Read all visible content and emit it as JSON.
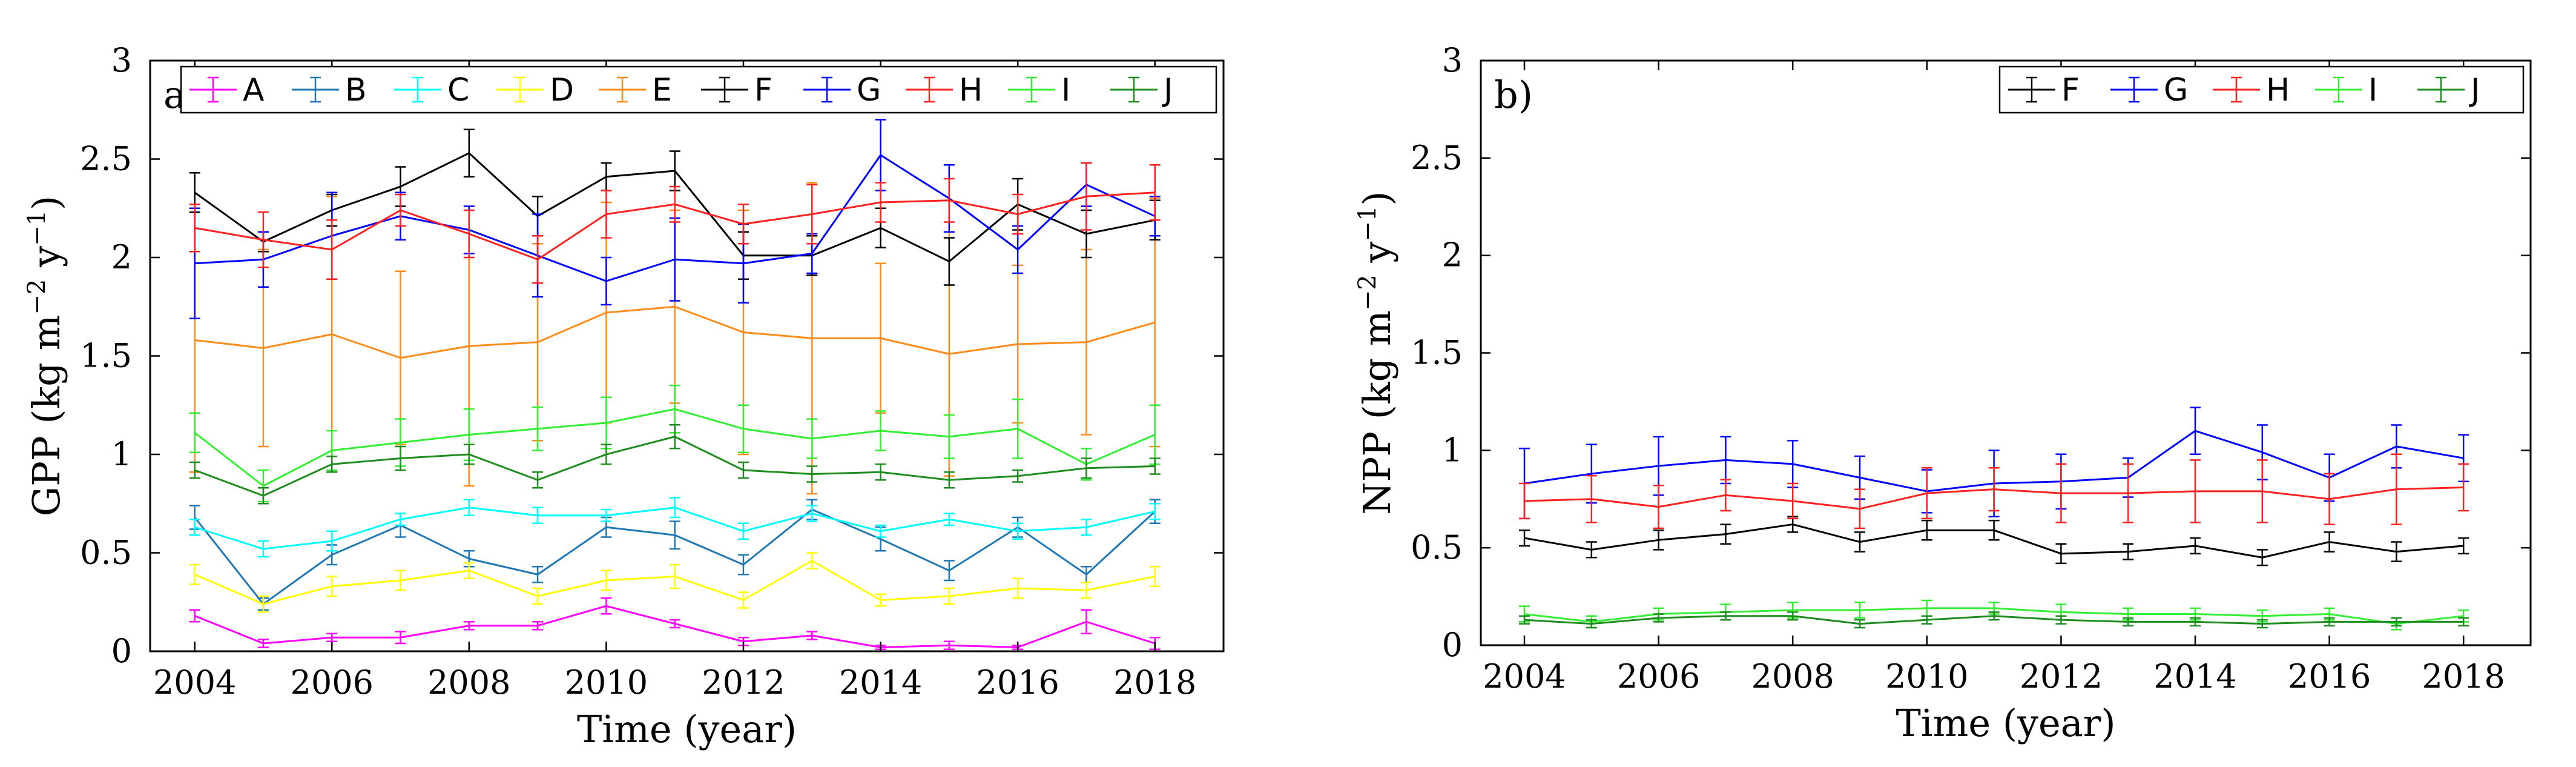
{
  "chart_data": [
    {
      "type": "line",
      "panel_label": "a)",
      "xlabel": "Time (year)",
      "ylabel_text": "GPP (kg m",
      "ylabel_sup1": "−2",
      "ylabel_mid": " y",
      "ylabel_sup2": "−1",
      "ylabel_end": ")",
      "xlim": [
        2003.35,
        2019.0
      ],
      "ylim": [
        0,
        3
      ],
      "xticks": [
        2004,
        2006,
        2008,
        2010,
        2012,
        2014,
        2016,
        2018
      ],
      "yticks": [
        0,
        0.5,
        1,
        1.5,
        2,
        2.5,
        3
      ],
      "grid": false,
      "legend_position": "top-right",
      "x": [
        2004,
        2005,
        2006,
        2007,
        2008,
        2009,
        2010,
        2011,
        2012,
        2013,
        2014,
        2015,
        2016,
        2017,
        2018
      ],
      "series": [
        {
          "name": "A",
          "color": "#ff00ff",
          "values": [
            0.18,
            0.04,
            0.07,
            0.07,
            0.13,
            0.13,
            0.23,
            0.14,
            0.05,
            0.08,
            0.02,
            0.03,
            0.02,
            0.15,
            0.04
          ],
          "errors": [
            0.03,
            0.02,
            0.02,
            0.03,
            0.02,
            0.02,
            0.04,
            0.02,
            0.02,
            0.02,
            0.01,
            0.02,
            0.01,
            0.06,
            0.03
          ]
        },
        {
          "name": "B",
          "color": "#1f77b4",
          "values": [
            0.68,
            0.24,
            0.49,
            0.64,
            0.47,
            0.39,
            0.63,
            0.59,
            0.44,
            0.72,
            0.57,
            0.41,
            0.63,
            0.39,
            0.71
          ],
          "errors": [
            0.06,
            0.03,
            0.05,
            0.06,
            0.04,
            0.04,
            0.05,
            0.07,
            0.05,
            0.05,
            0.06,
            0.05,
            0.05,
            0.04,
            0.06
          ]
        },
        {
          "name": "C",
          "color": "#00ffff",
          "values": [
            0.63,
            0.52,
            0.56,
            0.67,
            0.73,
            0.69,
            0.69,
            0.73,
            0.61,
            0.7,
            0.61,
            0.67,
            0.61,
            0.63,
            0.71
          ],
          "errors": [
            0.04,
            0.04,
            0.05,
            0.03,
            0.04,
            0.04,
            0.03,
            0.05,
            0.04,
            0.04,
            0.03,
            0.03,
            0.04,
            0.04,
            0.04
          ]
        },
        {
          "name": "D",
          "color": "#ffff00",
          "values": [
            0.39,
            0.24,
            0.33,
            0.36,
            0.41,
            0.28,
            0.36,
            0.38,
            0.26,
            0.46,
            0.26,
            0.28,
            0.32,
            0.31,
            0.38
          ],
          "errors": [
            0.05,
            0.04,
            0.05,
            0.05,
            0.04,
            0.04,
            0.05,
            0.06,
            0.04,
            0.04,
            0.03,
            0.04,
            0.05,
            0.04,
            0.05
          ]
        },
        {
          "name": "E",
          "color": "#ff8c1a",
          "values": [
            1.58,
            1.54,
            1.61,
            1.49,
            1.55,
            1.57,
            1.72,
            1.75,
            1.62,
            1.59,
            1.59,
            1.51,
            1.56,
            1.57,
            1.67
          ],
          "errors": [
            0.67,
            0.5,
            0.7,
            0.44,
            0.71,
            0.5,
            0.56,
            0.49,
            0.62,
            0.79,
            0.38,
            0.62,
            0.4,
            0.47,
            0.63
          ]
        },
        {
          "name": "F",
          "color": "#000000",
          "values": [
            2.33,
            2.08,
            2.24,
            2.36,
            2.53,
            2.21,
            2.41,
            2.44,
            2.01,
            2.01,
            2.15,
            1.98,
            2.27,
            2.12,
            2.19
          ],
          "errors": [
            0.1,
            0.05,
            0.08,
            0.1,
            0.12,
            0.1,
            0.07,
            0.1,
            0.12,
            0.1,
            0.1,
            0.12,
            0.13,
            0.12,
            0.1
          ]
        },
        {
          "name": "G",
          "color": "#0000ff",
          "values": [
            1.97,
            1.99,
            2.11,
            2.21,
            2.14,
            2.01,
            1.88,
            1.99,
            1.97,
            2.02,
            2.52,
            2.3,
            2.04,
            2.37,
            2.21
          ],
          "errors": [
            0.28,
            0.14,
            0.22,
            0.12,
            0.12,
            0.21,
            0.12,
            0.21,
            0.2,
            0.1,
            0.18,
            0.17,
            0.12,
            0.11,
            0.1
          ]
        },
        {
          "name": "H",
          "color": "#ff2020",
          "values": [
            2.15,
            2.09,
            2.04,
            2.24,
            2.12,
            1.99,
            2.22,
            2.27,
            2.17,
            2.22,
            2.28,
            2.29,
            2.22,
            2.31,
            2.33
          ],
          "errors": [
            0.12,
            0.14,
            0.15,
            0.08,
            0.12,
            0.12,
            0.12,
            0.09,
            0.1,
            0.15,
            0.1,
            0.11,
            0.1,
            0.17,
            0.14
          ]
        },
        {
          "name": "I",
          "color": "#33ee33",
          "values": [
            1.11,
            0.84,
            1.02,
            1.06,
            1.1,
            1.13,
            1.16,
            1.23,
            1.13,
            1.08,
            1.12,
            1.09,
            1.13,
            0.95,
            1.1
          ],
          "errors": [
            0.1,
            0.08,
            0.1,
            0.12,
            0.13,
            0.11,
            0.13,
            0.12,
            0.12,
            0.1,
            0.1,
            0.11,
            0.15,
            0.08,
            0.15
          ]
        },
        {
          "name": "J",
          "color": "#1e8c1e",
          "values": [
            0.92,
            0.79,
            0.95,
            0.98,
            1.0,
            0.87,
            1.0,
            1.09,
            0.92,
            0.9,
            0.91,
            0.87,
            0.89,
            0.93,
            0.94
          ],
          "errors": [
            0.04,
            0.04,
            0.04,
            0.06,
            0.05,
            0.04,
            0.05,
            0.06,
            0.04,
            0.04,
            0.04,
            0.04,
            0.03,
            0.05,
            0.04
          ]
        }
      ]
    },
    {
      "type": "line",
      "panel_label": "b)",
      "xlabel": "Time (year)",
      "ylabel_text": "NPP (kg m",
      "ylabel_sup1": "−2",
      "ylabel_mid": " y",
      "ylabel_sup2": "−1",
      "ylabel_end": ")",
      "xlim": [
        2003.35,
        2019.0
      ],
      "ylim": [
        0,
        3
      ],
      "xticks": [
        2004,
        2006,
        2008,
        2010,
        2012,
        2014,
        2016,
        2018
      ],
      "yticks": [
        0,
        0.5,
        1,
        1.5,
        2,
        2.5,
        3
      ],
      "grid": false,
      "legend_position": "top-right",
      "x": [
        2004,
        2005,
        2006,
        2007,
        2008,
        2009,
        2010,
        2011,
        2012,
        2013,
        2014,
        2015,
        2016,
        2017,
        2018
      ],
      "series": [
        {
          "name": "F",
          "color": "#000000",
          "values": [
            0.55,
            0.49,
            0.54,
            0.57,
            0.62,
            0.53,
            0.59,
            0.59,
            0.47,
            0.48,
            0.51,
            0.45,
            0.53,
            0.48,
            0.51
          ],
          "errors": [
            0.04,
            0.04,
            0.05,
            0.05,
            0.04,
            0.05,
            0.05,
            0.05,
            0.05,
            0.04,
            0.04,
            0.04,
            0.05,
            0.05,
            0.04
          ]
        },
        {
          "name": "G",
          "color": "#0000ff",
          "values": [
            0.83,
            0.88,
            0.92,
            0.95,
            0.93,
            0.86,
            0.79,
            0.83,
            0.84,
            0.86,
            1.1,
            0.99,
            0.86,
            1.02,
            0.96
          ],
          "errors": [
            0.18,
            0.15,
            0.15,
            0.12,
            0.12,
            0.11,
            0.11,
            0.17,
            0.14,
            0.1,
            0.12,
            0.14,
            0.12,
            0.11,
            0.12
          ]
        },
        {
          "name": "H",
          "color": "#ff2020",
          "values": [
            0.74,
            0.75,
            0.71,
            0.77,
            0.74,
            0.7,
            0.78,
            0.8,
            0.78,
            0.78,
            0.79,
            0.79,
            0.75,
            0.8,
            0.81
          ],
          "errors": [
            0.09,
            0.12,
            0.11,
            0.08,
            0.09,
            0.1,
            0.13,
            0.11,
            0.15,
            0.15,
            0.16,
            0.16,
            0.13,
            0.18,
            0.12
          ]
        },
        {
          "name": "I",
          "color": "#33ee33",
          "values": [
            0.16,
            0.12,
            0.16,
            0.17,
            0.18,
            0.18,
            0.19,
            0.19,
            0.17,
            0.16,
            0.16,
            0.15,
            0.16,
            0.11,
            0.15
          ],
          "errors": [
            0.04,
            0.03,
            0.03,
            0.04,
            0.04,
            0.04,
            0.04,
            0.03,
            0.04,
            0.03,
            0.03,
            0.03,
            0.03,
            0.03,
            0.03
          ]
        },
        {
          "name": "J",
          "color": "#1e8c1e",
          "values": [
            0.13,
            0.11,
            0.14,
            0.15,
            0.15,
            0.11,
            0.13,
            0.15,
            0.13,
            0.12,
            0.12,
            0.11,
            0.12,
            0.12,
            0.12
          ],
          "errors": [
            0.02,
            0.02,
            0.02,
            0.02,
            0.02,
            0.02,
            0.02,
            0.02,
            0.02,
            0.02,
            0.02,
            0.02,
            0.02,
            0.02,
            0.02
          ]
        }
      ]
    }
  ]
}
